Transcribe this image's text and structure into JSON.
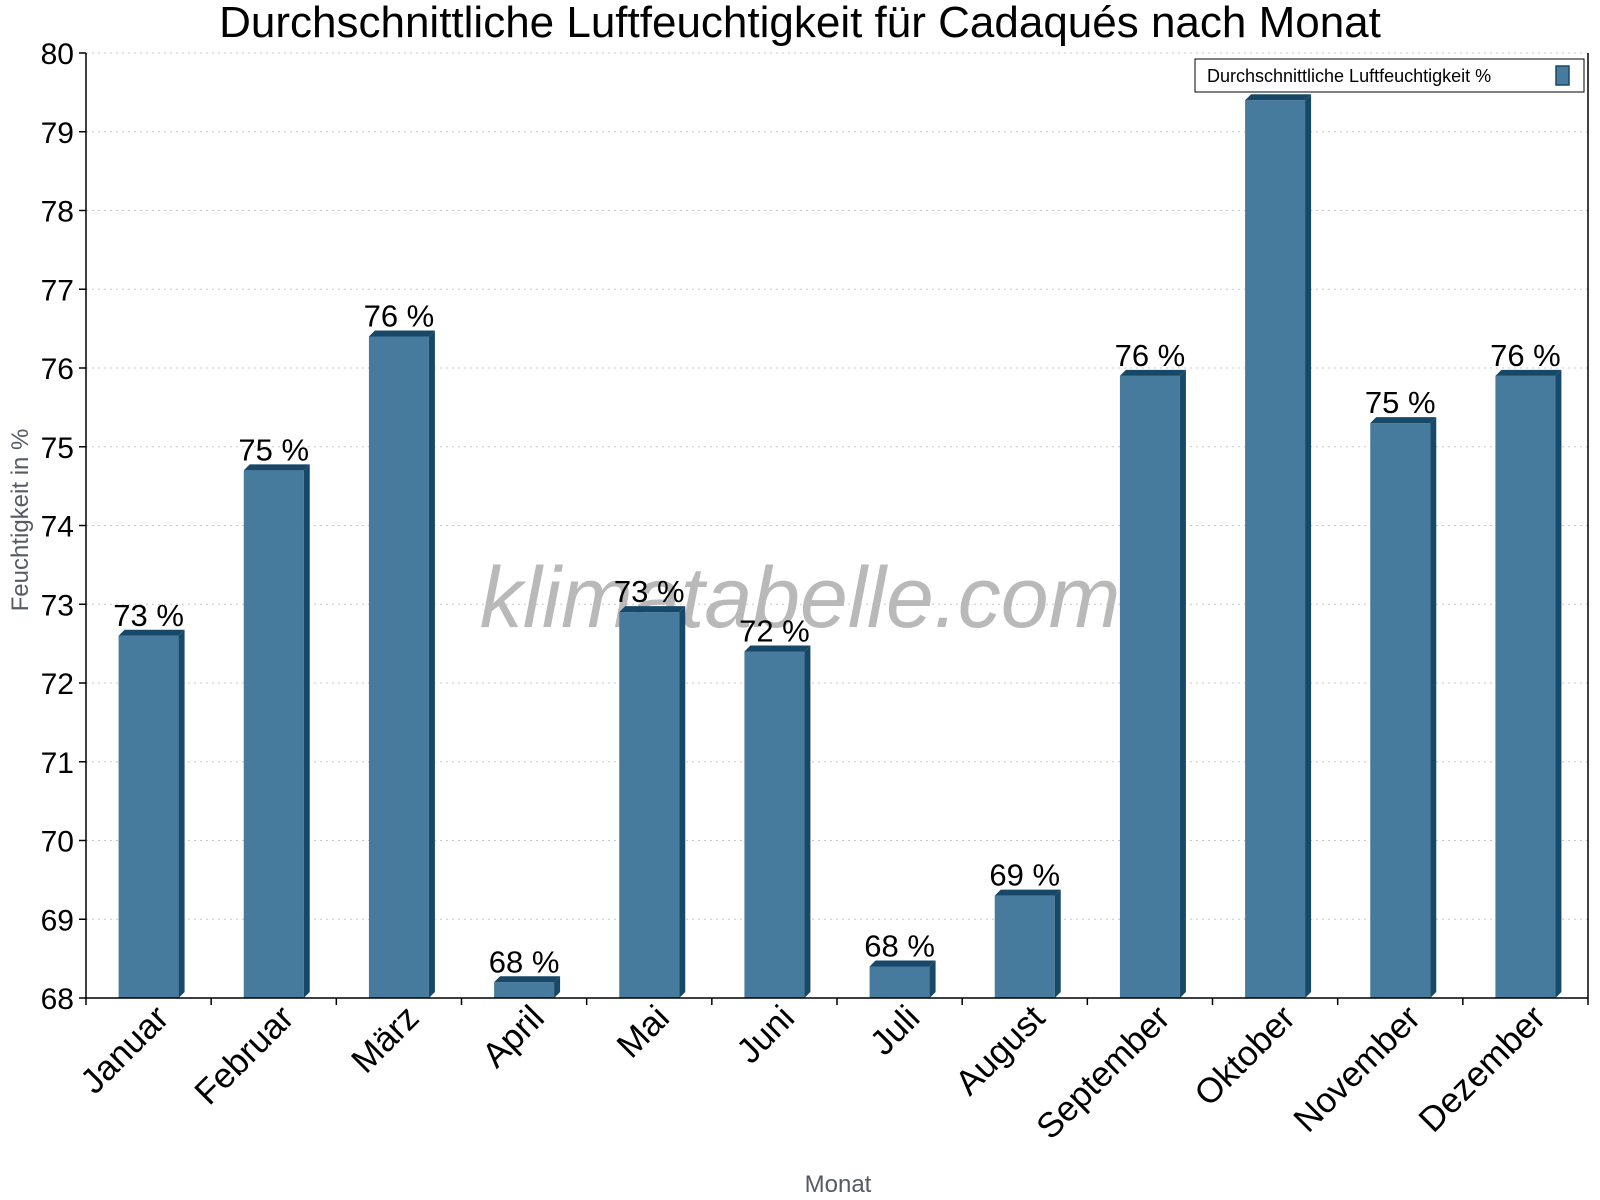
{
  "chart_data": {
    "type": "bar",
    "title": "Durchschnittliche Luftfeuchtigkeit für Cadaqués nach Monat",
    "xlabel": "Monat",
    "ylabel": "Feuchtigkeit in %",
    "ylim": [
      68,
      80
    ],
    "yticks": [
      "68",
      "69",
      "70",
      "71",
      "72",
      "73",
      "74",
      "75",
      "76",
      "77",
      "78",
      "79",
      "80"
    ],
    "grid": true,
    "legend_position": "top-right",
    "categories": [
      "Januar",
      "Februar",
      "März",
      "April",
      "Mai",
      "Juni",
      "Juli",
      "August",
      "September",
      "Oktober",
      "November",
      "Dezember"
    ],
    "series": [
      {
        "name": "Durchschnittliche Luftfeuchtigkeit %",
        "values": [
          72.6,
          74.7,
          76.4,
          68.2,
          72.9,
          72.4,
          68.4,
          69.3,
          75.9,
          79.4,
          75.3,
          75.9
        ],
        "labels": [
          "73 %",
          "75 %",
          "76 %",
          "68 %",
          "73 %",
          "72 %",
          "68 %",
          "69 %",
          "76 %",
          "",
          "75 %",
          "76 %"
        ],
        "color": "#467b9e",
        "dark_color": "#184867"
      }
    ],
    "watermark": "klimatabelle.com"
  }
}
